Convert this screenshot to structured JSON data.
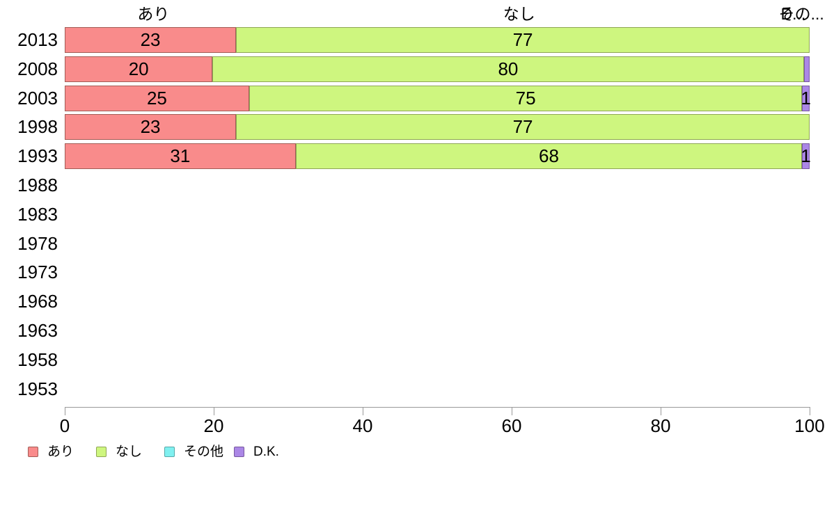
{
  "chart_data": {
    "type": "bar",
    "orientation": "horizontal",
    "stacked": true,
    "grid": false,
    "legend_position": "bottom",
    "categories": [
      "2013",
      "2008",
      "2003",
      "1998",
      "1993",
      "1988",
      "1983",
      "1978",
      "1973",
      "1968",
      "1963",
      "1958",
      "1953"
    ],
    "series": [
      {
        "name": "あり",
        "fill": "#F98B8B",
        "border": "#A25C55",
        "values": [
          23,
          20,
          25,
          23,
          31,
          0,
          0,
          0,
          0,
          0,
          0,
          0,
          0
        ],
        "value_labels": [
          "23",
          "20",
          "25",
          "23",
          "31",
          "",
          "",
          "",
          "",
          "",
          "",
          "",
          ""
        ]
      },
      {
        "name": "なし",
        "fill": "#CEF67F",
        "border": "#8FA655",
        "values": [
          77,
          80,
          75,
          77,
          68,
          0,
          0,
          0,
          0,
          0,
          0,
          0,
          0
        ],
        "value_labels": [
          "77",
          "80",
          "75",
          "77",
          "68",
          "",
          "",
          "",
          "",
          "",
          "",
          "",
          ""
        ]
      },
      {
        "name": "その他",
        "fill": "#80F0F0",
        "border": "#57A8A8",
        "values": [
          0,
          0,
          0,
          0,
          0,
          0,
          0,
          0,
          0,
          0,
          0,
          0,
          0
        ],
        "value_labels": [
          "",
          "",
          "",
          "",
          "",
          "",
          "",
          "",
          "",
          "",
          "",
          "",
          ""
        ]
      },
      {
        "name": "D.K.",
        "fill": "#AB87E6",
        "border": "#77589F",
        "values": [
          0,
          0.8,
          1,
          0,
          1,
          0,
          0,
          0,
          0,
          0,
          0,
          0,
          0
        ],
        "value_labels": [
          "",
          "",
          "1",
          "",
          "1",
          "",
          "",
          "",
          "",
          "",
          "",
          "",
          ""
        ]
      }
    ],
    "top_labels": [
      {
        "text": "あり",
        "pct": 11.9
      },
      {
        "text": "なし",
        "pct": 61.0
      },
      {
        "text": "その...",
        "pct": 98.9
      },
      {
        "text": "D...",
        "pct": 97.8
      }
    ],
    "x_axis": {
      "range": [
        0,
        100
      ],
      "ticks": [
        "0",
        "20",
        "40",
        "60",
        "80",
        "100"
      ],
      "tick_values": [
        0,
        20,
        40,
        60,
        80,
        100
      ],
      "axis_color": "#999999"
    },
    "legend": [
      "あり",
      "なし",
      "その他",
      "D.K."
    ]
  }
}
